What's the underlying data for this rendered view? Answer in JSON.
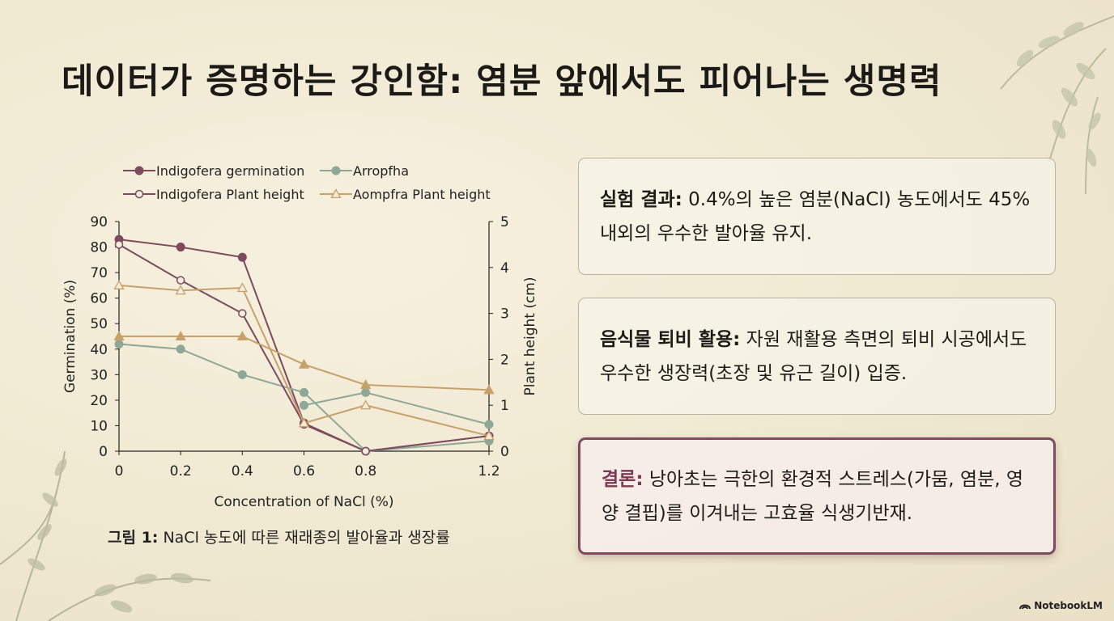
{
  "title": "데이터가 증명하는 강인함: 염분 앞에서도 피어나는 생명력",
  "caption": {
    "label": "그림 1:",
    "text": " NaCl 농도에 따른 재래종의 발아율과 생장률"
  },
  "cards": [
    {
      "label": "실험 결과:",
      "text": " 0.4%의 높은 염분(NaCl) 농도에서도 45% 내외의 우수한 발아율 유지."
    },
    {
      "label": "음식물 퇴비 활용:",
      "text": " 자원 재활용 측면의 퇴비 시공에서도 우수한 생장력(초장 및 유근 길이) 입증."
    },
    {
      "label": "결론:",
      "text": " 낭아초는 극한의 환경적 스트레스(가뭄, 염분, 영양 결핍)를 이겨내는 고효율 식생기반재."
    }
  ],
  "brand": "NotebookLM",
  "chart_data": {
    "type": "line",
    "xlabel": "Concentration of NaCl (%)",
    "ylabel": "Germination (%)",
    "y2label": "Plant height (cm)",
    "x": [
      0,
      0.2,
      0.4,
      0.6,
      0.8,
      1.2
    ],
    "xlim": [
      0,
      1.2
    ],
    "ylim": [
      0,
      90
    ],
    "y2lim": [
      0,
      5
    ],
    "xticks": [
      "0",
      "0.2",
      "0.4",
      "0.6",
      "0.8",
      "1.2"
    ],
    "yticks": [
      "0",
      "10",
      "20",
      "30",
      "40",
      "50",
      "60",
      "70",
      "80",
      "90"
    ],
    "y2ticks": [
      "0",
      "1",
      "2",
      "3",
      "4",
      "5"
    ],
    "legend": "top",
    "series": [
      {
        "name": "Indigofera germination",
        "axis": "left",
        "color": "#7d4a5e",
        "marker": "filled-circle",
        "points": [
          [
            0,
            83
          ],
          [
            0.2,
            80
          ],
          [
            0.4,
            76
          ],
          [
            0.6,
            11
          ],
          [
            0.8,
            0
          ],
          [
            1.2,
            6
          ]
        ]
      },
      {
        "name": "Arropfha",
        "axis": "left",
        "color": "#8fa896",
        "marker": "filled-circle",
        "points": [
          [
            0,
            42
          ],
          [
            0.2,
            40
          ],
          [
            0.4,
            30
          ],
          [
            0.6,
            23
          ],
          [
            0.8,
            0
          ],
          [
            1.2,
            4
          ]
        ]
      },
      {
        "name": "Arropfha",
        "axis": "left",
        "color": "#8fa896",
        "marker": "filled-circle",
        "legend": false,
        "points": [
          [
            0.6,
            18
          ],
          [
            0.8,
            23
          ],
          [
            1.2,
            10.5
          ]
        ]
      },
      {
        "name": "Indigofera Plant height",
        "axis": "left",
        "color": "#7d4a5e",
        "marker": "open-circle",
        "points": [
          [
            0,
            81
          ],
          [
            0.2,
            67
          ],
          [
            0.4,
            54
          ],
          [
            0.6,
            10.5
          ],
          [
            0.8,
            0
          ],
          [
            1.2,
            6
          ]
        ]
      },
      {
        "name": "Aompfra Plant height",
        "axis": "left",
        "color": "#c7a06a",
        "marker": "open-triangle",
        "points": [
          [
            0,
            65
          ],
          [
            0.2,
            63
          ],
          [
            0.4,
            64
          ],
          [
            0.6,
            11
          ],
          [
            0.8,
            18
          ],
          [
            1.2,
            6
          ]
        ]
      },
      {
        "name": "Aompfra Plant height",
        "axis": "left",
        "color": "#c7a06a",
        "marker": "filled-triangle",
        "legend": false,
        "points": [
          [
            0,
            45
          ],
          [
            0.2,
            45
          ],
          [
            0.4,
            45
          ],
          [
            0.6,
            34
          ],
          [
            0.8,
            26
          ],
          [
            1.2,
            24
          ]
        ]
      }
    ]
  }
}
